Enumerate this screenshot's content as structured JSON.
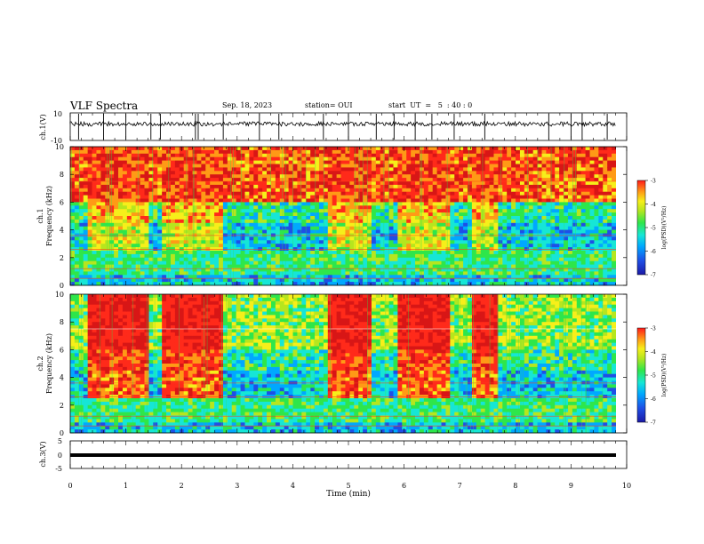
{
  "header": {
    "title": "VLF Spectra",
    "date": "Sep. 18, 2023",
    "station": "station= OUI",
    "start": "start  UT  =   5  : 40 : 0"
  },
  "chart_data": [
    {
      "type": "line",
      "panel": "ch1-waveform",
      "ylabel": "ch.1(V)",
      "ylim": [
        -10,
        10
      ],
      "y_ticks": [
        "10",
        "-10"
      ],
      "xlim": [
        0,
        10
      ],
      "baseline": 2.0,
      "spikes_at_min": [
        0.15,
        0.6,
        1.0,
        1.45,
        1.62,
        2.25,
        2.3,
        2.75,
        3.4,
        3.75,
        4.55,
        5.0,
        5.5,
        5.82,
        6.2,
        6.5,
        6.9,
        7.45,
        8.6,
        9.0,
        9.2,
        9.65
      ],
      "color": "#000000"
    },
    {
      "type": "heatmap",
      "panel": "ch1-spectrogram",
      "ylabel": "ch.1\nFrequency (kHz)",
      "ylim": [
        0,
        10
      ],
      "y_ticks": [
        "0",
        "2",
        "4",
        "6",
        "8",
        "10"
      ],
      "xlim": [
        0,
        10
      ],
      "colorbar": {
        "label": "log(PSD)(V²/Hz)",
        "range": [
          -7,
          -3
        ],
        "ticks": [
          "-3",
          "-4",
          "-5",
          "-6",
          "-7"
        ]
      },
      "bursts_min": [
        [
          0.3,
          1.45
        ],
        [
          1.65,
          2.75
        ],
        [
          4.6,
          5.45
        ],
        [
          5.85,
          6.8
        ],
        [
          7.25,
          7.7
        ]
      ],
      "colormap": [
        "#1c1aa6",
        "#1e4fe6",
        "#00a8ff",
        "#16e6d6",
        "#2ee64b",
        "#b6e61e",
        "#f6ef1a",
        "#ff9a16",
        "#ff2a1a",
        "#d81616"
      ]
    },
    {
      "type": "heatmap",
      "panel": "ch2-spectrogram",
      "ylabel": "ch.2\nFrequency (kHz)",
      "ylim": [
        0,
        10
      ],
      "y_ticks": [
        "0",
        "2",
        "4",
        "6",
        "8",
        "10"
      ],
      "xlim": [
        0,
        10
      ],
      "colorbar": {
        "label": "log(PSD)(V²/Hz)",
        "range": [
          -7,
          -3
        ],
        "ticks": [
          "-3",
          "-4",
          "-5",
          "-6",
          "-7"
        ]
      },
      "bursts_min": [
        [
          0.3,
          1.45
        ],
        [
          1.65,
          2.75
        ],
        [
          4.6,
          5.45
        ],
        [
          5.85,
          6.8
        ],
        [
          7.25,
          7.7
        ]
      ],
      "colormap": [
        "#1c1aa6",
        "#1e4fe6",
        "#00a8ff",
        "#16e6d6",
        "#2ee64b",
        "#b6e61e",
        "#f6ef1a",
        "#ff9a16",
        "#ff2a1a",
        "#d81616"
      ]
    },
    {
      "type": "line",
      "panel": "ch3-waveform",
      "ylabel": "ch.3(V)",
      "ylim": [
        -5,
        5
      ],
      "y_ticks": [
        "5",
        "0",
        "-5"
      ],
      "xlim": [
        0,
        10
      ],
      "baseline": 0,
      "color": "#000000"
    }
  ],
  "xaxis": {
    "label": "Time (min)",
    "ticks": [
      "0",
      "1",
      "2",
      "3",
      "4",
      "5",
      "6",
      "7",
      "8",
      "9",
      "10"
    ]
  }
}
